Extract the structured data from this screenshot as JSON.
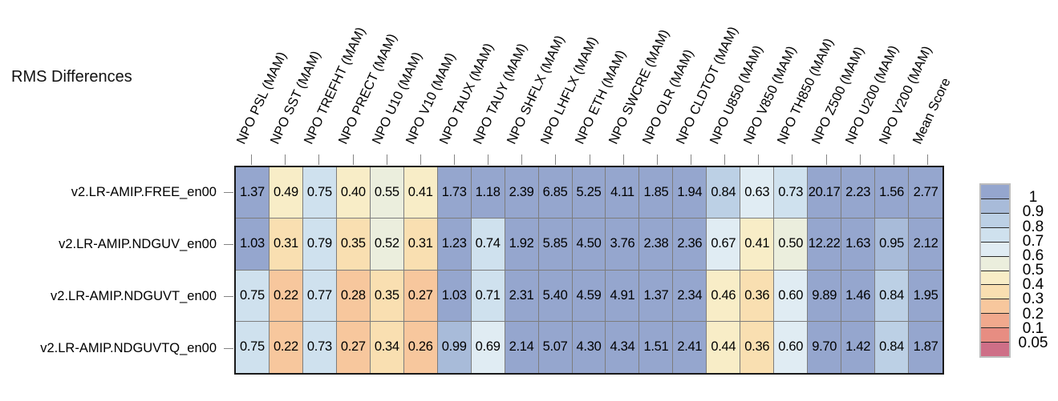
{
  "chart_data": {
    "type": "heatmap",
    "title": "RMS Differences",
    "columns": [
      "NPO PSL (MAM)",
      "NPO SST (MAM)",
      "NPO TREFHT (MAM)",
      "NPO PRECT (MAM)",
      "NPO U10 (MAM)",
      "NPO V10 (MAM)",
      "NPO TAUX (MAM)",
      "NPO TAUY (MAM)",
      "NPO SHFLX (MAM)",
      "NPO LHFLX (MAM)",
      "NPO ETH (MAM)",
      "NPO SWCRE (MAM)",
      "NPO OLR (MAM)",
      "NPO CLDTOT (MAM)",
      "NPO U850 (MAM)",
      "NPO V850 (MAM)",
      "NPO TH850 (MAM)",
      "NPO Z500 (MAM)",
      "NPO U200 (MAM)",
      "NPO V200 (MAM)",
      "Mean Score"
    ],
    "rows": [
      "v2.LR-AMIP.FREE_en00",
      "v2.LR-AMIP.NDGUV_en00",
      "v2.LR-AMIP.NDGUVT_en00",
      "v2.LR-AMIP.NDGUVTQ_en00"
    ],
    "values": [
      [
        1.37,
        0.49,
        0.75,
        0.4,
        0.55,
        0.41,
        1.73,
        1.18,
        2.39,
        6.85,
        5.25,
        4.11,
        1.85,
        1.94,
        0.84,
        0.63,
        0.73,
        20.17,
        2.23,
        1.56,
        2.77
      ],
      [
        1.03,
        0.31,
        0.79,
        0.35,
        0.52,
        0.31,
        1.23,
        0.74,
        1.92,
        5.85,
        4.5,
        3.76,
        2.38,
        2.36,
        0.67,
        0.41,
        0.5,
        12.22,
        1.63,
        0.95,
        2.12
      ],
      [
        0.75,
        0.22,
        0.77,
        0.28,
        0.35,
        0.27,
        1.03,
        0.71,
        2.31,
        5.4,
        4.59,
        4.91,
        1.37,
        2.34,
        0.46,
        0.36,
        0.6,
        9.89,
        1.46,
        0.84,
        1.95
      ],
      [
        0.75,
        0.22,
        0.73,
        0.27,
        0.34,
        0.26,
        0.99,
        0.69,
        2.14,
        5.07,
        4.3,
        4.34,
        1.51,
        2.41,
        0.44,
        0.36,
        0.6,
        9.7,
        1.42,
        0.84,
        1.87
      ]
    ],
    "legend": {
      "boundary_labels": [
        "1",
        "0.9",
        "0.8",
        "0.7",
        "0.6",
        "0.5",
        "0.4",
        "0.3",
        "0.2",
        "0.1",
        "0.05"
      ],
      "boundaries": [
        1,
        0.9,
        0.8,
        0.7,
        0.6,
        0.5,
        0.4,
        0.3,
        0.2,
        0.1,
        0.05
      ],
      "colors": [
        "#95a6ce",
        "#a8bbd9",
        "#bcd0e5",
        "#cfe1ee",
        "#e0ecf3",
        "#ebeedd",
        "#f8edc7",
        "#f9dfb1",
        "#f7c79d",
        "#f1a98d",
        "#e78d82",
        "#ce6f87"
      ]
    },
    "text_color": "#000000"
  }
}
